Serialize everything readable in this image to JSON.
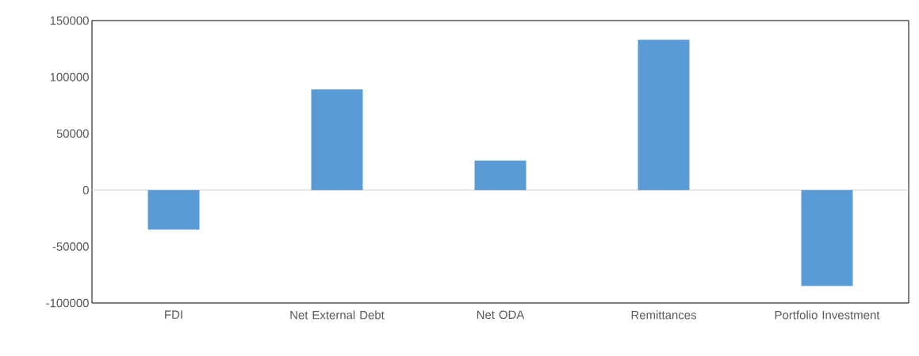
{
  "chart_data": {
    "type": "bar",
    "categories": [
      "FDI",
      "Net External Debt",
      "Net ODA",
      "Remittances",
      "Portfolio Investment"
    ],
    "values": [
      -35000,
      89000,
      26000,
      133000,
      -85000
    ],
    "color": "#5b9bd5",
    "ylim": [
      -100000,
      150000
    ],
    "yticks": [
      -100000,
      -50000,
      0,
      50000,
      100000,
      150000
    ],
    "grid": false,
    "ref_lines": [
      {
        "axis": "y",
        "value": 0,
        "color": "#d9d9d9"
      }
    ]
  }
}
